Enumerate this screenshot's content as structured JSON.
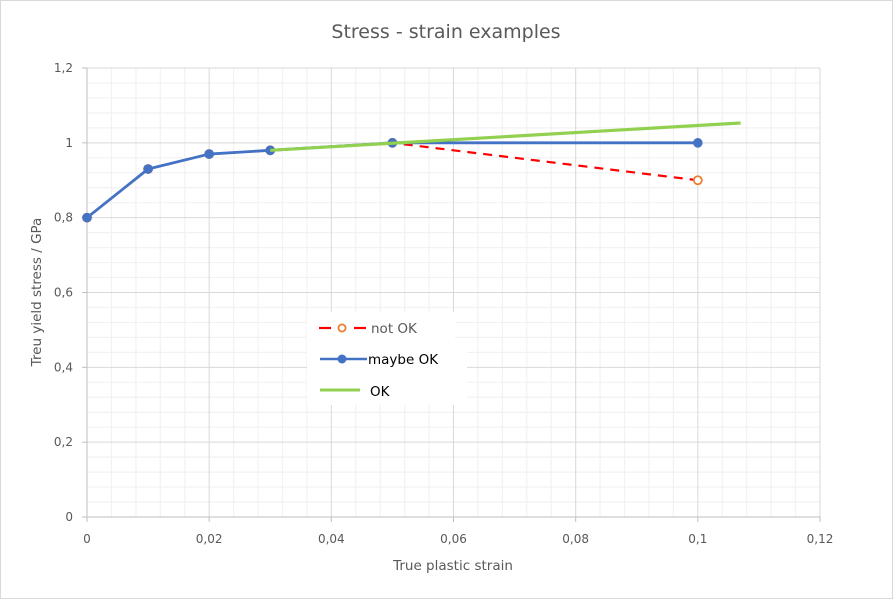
{
  "chart_data": {
    "type": "line",
    "title": "Stress - strain examples",
    "xlabel": "True plastic strain",
    "ylabel": "Treu yield stress / GPa",
    "xlim": [
      0,
      0.12
    ],
    "ylim": [
      0,
      1.2
    ],
    "x_ticks": [
      0,
      0.02,
      0.04,
      0.06,
      0.08,
      0.1,
      0.12
    ],
    "x_tick_labels": [
      "0",
      "0,02",
      "0,04",
      "0,06",
      "0,08",
      "0,1",
      "0,12"
    ],
    "y_ticks": [
      0,
      0.2,
      0.4,
      0.6,
      0.8,
      1,
      1.2
    ],
    "y_tick_labels": [
      "0",
      "0,2",
      "0,4",
      "0,6",
      "0,8",
      "1",
      "1,2"
    ],
    "grid": true,
    "legend_position": "center-left",
    "series": [
      {
        "name": "not OK",
        "color": "#ff0000",
        "marker_color": "#ed7d31",
        "style": "dashed",
        "marker": "hollow-circle",
        "x": [
          0,
          0.01,
          0.02,
          0.03,
          0.05,
          0.1
        ],
        "y": [
          0.8,
          0.93,
          0.97,
          0.98,
          1.0,
          0.9
        ]
      },
      {
        "name": "maybe OK",
        "color": "#4472c4",
        "style": "solid",
        "marker": "filled-circle",
        "x": [
          0,
          0.01,
          0.02,
          0.03,
          0.05,
          0.1
        ],
        "y": [
          0.8,
          0.93,
          0.97,
          0.98,
          1.0,
          1.0
        ]
      },
      {
        "name": "OK",
        "color": "#92d050",
        "style": "solid",
        "marker": "none",
        "x": [
          0.03,
          0.107
        ],
        "y": [
          0.98,
          1.053
        ]
      }
    ]
  }
}
